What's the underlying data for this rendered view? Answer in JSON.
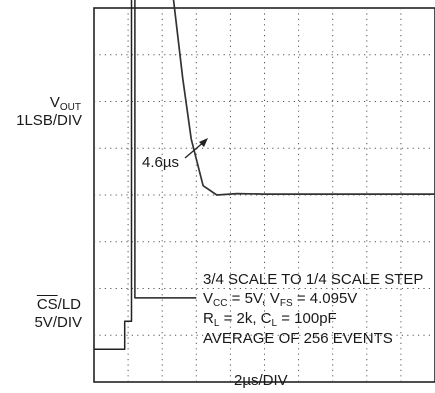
{
  "chart_data": {
    "type": "line",
    "title": "",
    "xlabel": "2µs/DIV",
    "x_units_per_div": "2µs",
    "grid": {
      "divisions_x": 10,
      "divisions_y": 8,
      "style": "dotted"
    },
    "series": [
      {
        "name": "VOUT",
        "trace_label_lines": [
          "V",
          "OUT",
          "1LSB/DIV"
        ],
        "scale": "1LSB/DIV",
        "points_div": [
          [
            0,
            12
          ],
          [
            2.0,
            12
          ],
          [
            2.2,
            5
          ],
          [
            2.6,
            2.5
          ],
          [
            2.85,
            1.2
          ],
          [
            3.2,
            0.2
          ],
          [
            3.6,
            0
          ],
          [
            4.2,
            0.03
          ],
          [
            5,
            0.02
          ],
          [
            7,
            0.02
          ],
          [
            10,
            0.02
          ]
        ]
      },
      {
        "name": "CS/LD",
        "trace_label_lines": [
          "CS",
          "/LD",
          "5V/DIV"
        ],
        "scale": "5V/DIV",
        "points_div": [
          [
            0,
            -3.3
          ],
          [
            0.9,
            -3.3
          ],
          [
            0.9,
            -2.7
          ],
          [
            1.1,
            -2.7
          ],
          [
            1.1,
            8
          ],
          [
            1.2,
            8
          ],
          [
            1.2,
            -2.2
          ],
          [
            3,
            -2.2
          ]
        ]
      }
    ],
    "annotations": {
      "arrow_text": "4.6µs",
      "legend_lines": [
        {
          "main": "3/4 SCALE TO 1/4 SCALE STEP"
        },
        {
          "p1": "V",
          "s1": "CC",
          "p2": " = 5V, V",
          "s2": "FS",
          "p3": " = 4.095V"
        },
        {
          "p1": "R",
          "s1": "L",
          "p2": " = 2k, C",
          "s2": "L",
          "p3": " = 100pF"
        },
        {
          "main": "AVERAGE OF 256 EVENTS"
        }
      ]
    }
  }
}
